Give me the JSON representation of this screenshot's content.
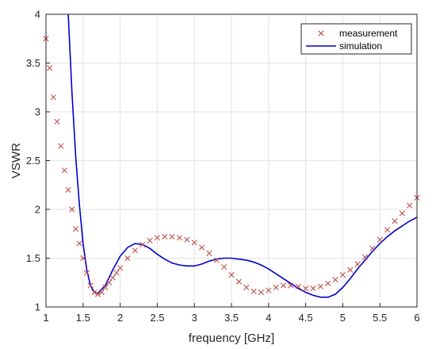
{
  "chart_data": {
    "type": "line",
    "title": "",
    "xlabel": "frequency [GHz]",
    "ylabel": "VSWR",
    "xlim": [
      1,
      6
    ],
    "ylim": [
      1,
      4
    ],
    "grid": true,
    "legend_position": "top-right",
    "x_ticks": [
      "1",
      "1.5",
      "2",
      "2.5",
      "3",
      "3.5",
      "4",
      "4.5",
      "5",
      "5.5",
      "6"
    ],
    "y_ticks": [
      "1",
      "1.5",
      "2",
      "2.5",
      "3",
      "3.5",
      "4"
    ],
    "series": [
      {
        "name": "measurement",
        "marker": "x",
        "color": "#c0504d",
        "x": [
          1.0,
          1.05,
          1.1,
          1.15,
          1.2,
          1.25,
          1.3,
          1.35,
          1.4,
          1.45,
          1.5,
          1.55,
          1.6,
          1.65,
          1.7,
          1.75,
          1.8,
          1.85,
          1.9,
          1.95,
          2.0,
          2.1,
          2.2,
          2.3,
          2.4,
          2.5,
          2.6,
          2.7,
          2.8,
          2.9,
          3.0,
          3.1,
          3.2,
          3.3,
          3.4,
          3.5,
          3.6,
          3.7,
          3.8,
          3.9,
          4.0,
          4.1,
          4.2,
          4.3,
          4.4,
          4.5,
          4.6,
          4.7,
          4.8,
          4.9,
          5.0,
          5.1,
          5.2,
          5.3,
          5.4,
          5.5,
          5.6,
          5.7,
          5.8,
          5.9,
          6.0
        ],
        "y": [
          3.75,
          3.45,
          3.15,
          2.9,
          2.65,
          2.4,
          2.2,
          2.0,
          1.8,
          1.65,
          1.5,
          1.35,
          1.22,
          1.15,
          1.13,
          1.15,
          1.2,
          1.25,
          1.3,
          1.35,
          1.4,
          1.5,
          1.58,
          1.64,
          1.68,
          1.71,
          1.72,
          1.72,
          1.71,
          1.69,
          1.66,
          1.61,
          1.55,
          1.48,
          1.41,
          1.33,
          1.26,
          1.2,
          1.16,
          1.15,
          1.17,
          1.2,
          1.22,
          1.22,
          1.21,
          1.19,
          1.19,
          1.21,
          1.24,
          1.28,
          1.33,
          1.38,
          1.44,
          1.51,
          1.6,
          1.69,
          1.79,
          1.88,
          1.96,
          2.04,
          2.12
        ]
      },
      {
        "name": "simulation",
        "color": "#0000cc",
        "x": [
          1.3,
          1.35,
          1.4,
          1.45,
          1.5,
          1.55,
          1.6,
          1.65,
          1.7,
          1.8,
          1.9,
          2.0,
          2.1,
          2.2,
          2.3,
          2.4,
          2.5,
          2.6,
          2.7,
          2.8,
          2.9,
          3.0,
          3.1,
          3.2,
          3.3,
          3.4,
          3.5,
          3.6,
          3.7,
          3.8,
          3.9,
          4.0,
          4.1,
          4.2,
          4.3,
          4.4,
          4.5,
          4.6,
          4.7,
          4.8,
          4.9,
          5.0,
          5.1,
          5.2,
          5.3,
          5.4,
          5.5,
          5.6,
          5.7,
          5.8,
          5.9,
          6.0
        ],
        "y": [
          4.0,
          3.2,
          2.55,
          2.05,
          1.65,
          1.38,
          1.22,
          1.15,
          1.14,
          1.22,
          1.38,
          1.52,
          1.61,
          1.65,
          1.64,
          1.6,
          1.54,
          1.49,
          1.45,
          1.43,
          1.42,
          1.42,
          1.44,
          1.47,
          1.49,
          1.5,
          1.5,
          1.49,
          1.48,
          1.46,
          1.43,
          1.39,
          1.34,
          1.29,
          1.24,
          1.19,
          1.15,
          1.12,
          1.1,
          1.1,
          1.13,
          1.2,
          1.29,
          1.39,
          1.48,
          1.57,
          1.65,
          1.72,
          1.78,
          1.83,
          1.88,
          1.92
        ]
      }
    ]
  }
}
